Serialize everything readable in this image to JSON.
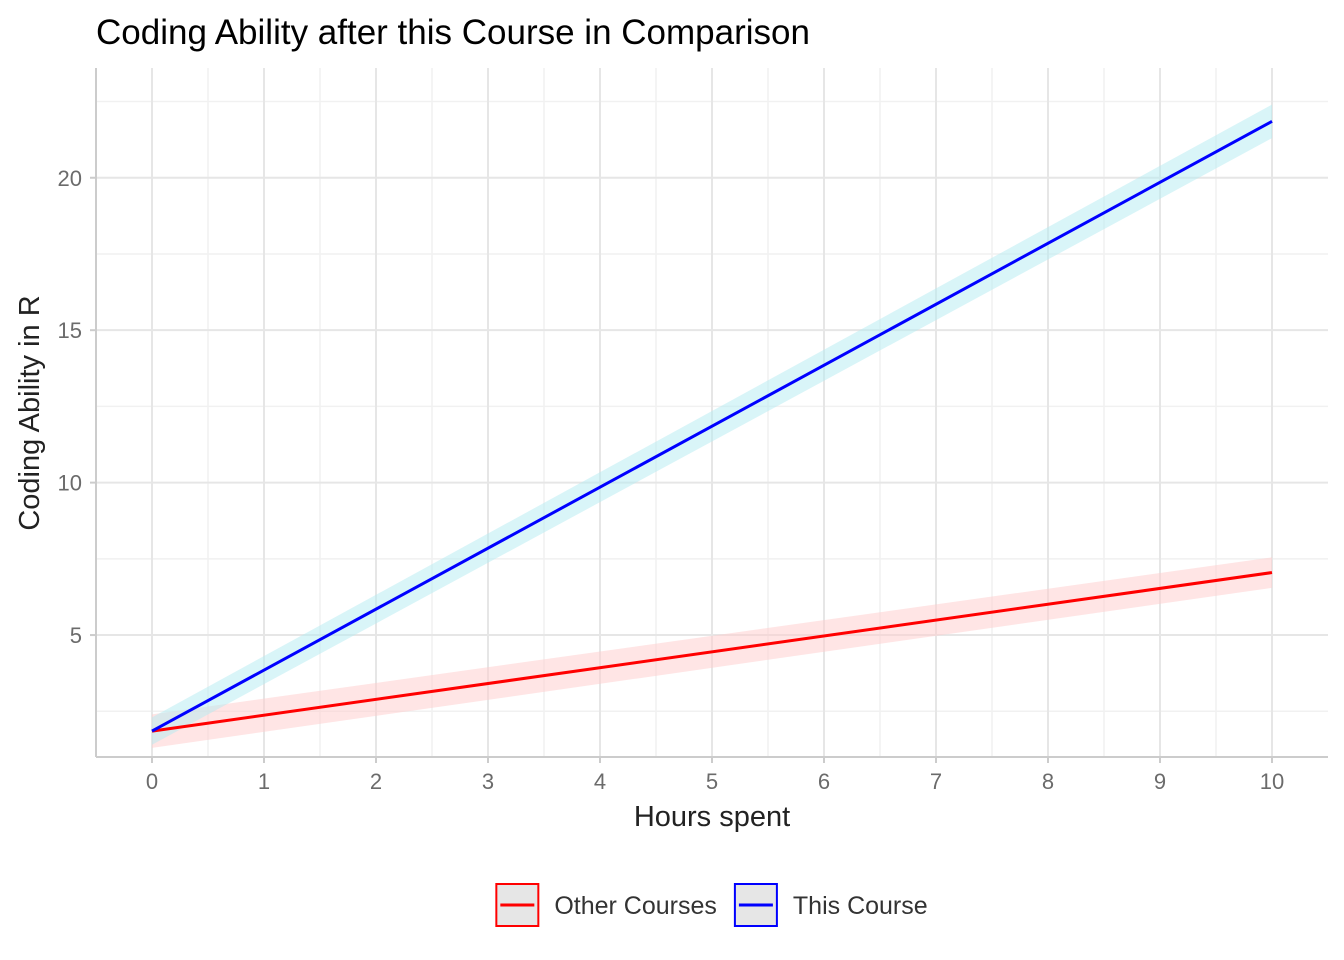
{
  "chart_data": {
    "type": "line",
    "title": "Coding Ability after this Course in Comparison",
    "xlabel": "Hours spent",
    "ylabel": "Coding Ability in R",
    "xlim": [
      -0.5,
      10.5
    ],
    "ylim": [
      1.0,
      23.6
    ],
    "x_ticks": [
      0,
      1,
      2,
      3,
      4,
      5,
      6,
      7,
      8,
      9,
      10
    ],
    "y_ticks": [
      5,
      10,
      15,
      20
    ],
    "grid": true,
    "legend_position": "bottom",
    "series": [
      {
        "name": "Other Courses",
        "color": "#ff0000",
        "band_color": "#ffcccc",
        "x": [
          0,
          10
        ],
        "y": [
          1.85,
          7.05
        ],
        "ci_lower": [
          1.3,
          6.55
        ],
        "ci_upper": [
          2.4,
          7.55
        ]
      },
      {
        "name": "This Course",
        "color": "#0000ff",
        "band_color": "#b3ecf2",
        "x": [
          0,
          10
        ],
        "y": [
          1.85,
          21.85
        ],
        "ci_lower": [
          1.4,
          21.3
        ],
        "ci_upper": [
          2.3,
          22.4
        ]
      }
    ]
  }
}
